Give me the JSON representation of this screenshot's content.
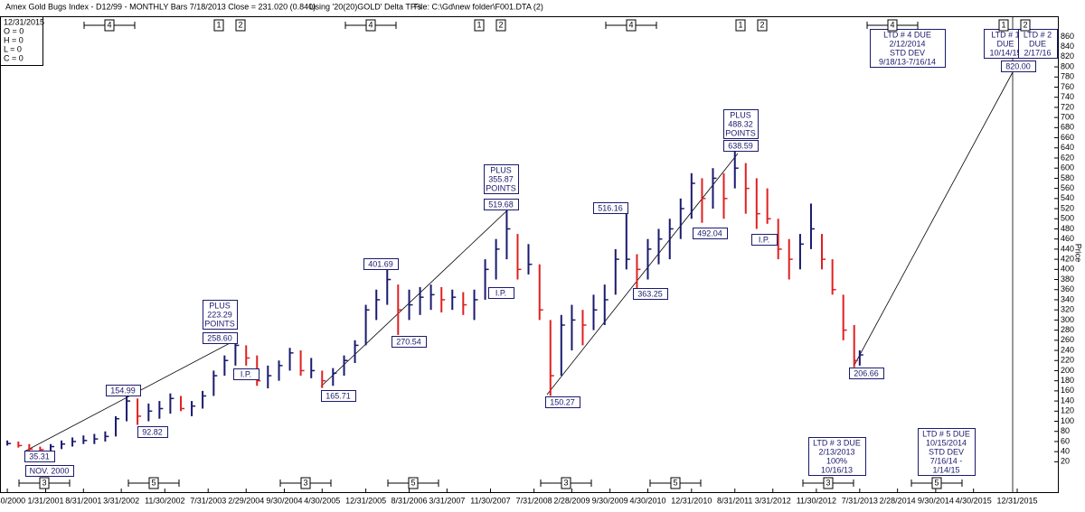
{
  "chart_data": {
    "type": "ohlc",
    "title": "Amex Gold Bugs Index - D12/99 - MONTHLY Bars 7/18/2013 Close = 231.020 (0.840)",
    "subtitle": "Using '20(20)GOLD' Delta TP's",
    "file_label": "File: C:\\Gd\\new folder\\F001.DTA (2)",
    "info_box": [
      "12/31/2015",
      "O = 0",
      "H = 0",
      "L = 0",
      "C = 0"
    ],
    "y_label": "Price",
    "up_color": "#1a1a6e",
    "down_color": "#e02020",
    "xlim": [
      "5/20/2000",
      "8/15/2016"
    ],
    "xticks": [
      "6/30/2000",
      "1/31/2001",
      "8/31/2001",
      "3/31/2002",
      "11/30/2002",
      "7/31/2003",
      "2/29/2004",
      "9/30/2004",
      "4/30/2005",
      "12/31/2005",
      "8/31/2006",
      "3/31/2007",
      "11/30/2007",
      "7/31/2008",
      "2/28/2009",
      "9/30/2009",
      "4/30/2010",
      "12/31/2010",
      "8/31/2011",
      "3/31/2012",
      "11/30/2012",
      "7/31/2013",
      "2/28/2014",
      "9/30/2014",
      "4/30/2015",
      "12/31/2015"
    ],
    "ylim": [
      -40,
      900
    ],
    "yticks": [
      20,
      40,
      60,
      80,
      100,
      120,
      140,
      160,
      180,
      200,
      220,
      240,
      260,
      280,
      300,
      320,
      340,
      360,
      380,
      400,
      420,
      440,
      460,
      480,
      500,
      520,
      540,
      560,
      580,
      600,
      620,
      640,
      660,
      680,
      700,
      720,
      740,
      760,
      780,
      800,
      820,
      840,
      860
    ],
    "x": [
      "6/30/2000",
      "8/31/2000",
      "10/31/2000",
      "12/31/2000",
      "2/28/2001",
      "4/30/2001",
      "6/30/2001",
      "8/31/2001",
      "10/31/2001",
      "12/31/2001",
      "2/28/2002",
      "4/30/2002",
      "6/30/2002",
      "8/31/2002",
      "10/31/2002",
      "12/31/2002",
      "2/28/2003",
      "4/30/2003",
      "6/30/2003",
      "8/31/2003",
      "10/31/2003",
      "12/31/2003",
      "2/29/2004",
      "4/30/2004",
      "6/30/2004",
      "8/31/2004",
      "10/31/2004",
      "12/31/2004",
      "2/28/2005",
      "4/30/2005",
      "6/30/2005",
      "8/31/2005",
      "10/31/2005",
      "12/31/2005",
      "2/28/2006",
      "4/30/2006",
      "6/30/2006",
      "8/31/2006",
      "10/31/2006",
      "12/31/2006",
      "2/28/2007",
      "4/30/2007",
      "6/30/2007",
      "8/31/2007",
      "10/31/2007",
      "12/31/2007",
      "2/29/2008",
      "4/30/2008",
      "6/30/2008",
      "8/31/2008",
      "10/31/2008",
      "12/31/2008",
      "2/28/2009",
      "4/30/2009",
      "6/30/2009",
      "8/31/2009",
      "10/31/2009",
      "12/31/2009",
      "2/28/2010",
      "4/30/2010",
      "6/30/2010",
      "8/31/2010",
      "10/31/2010",
      "12/31/2010",
      "2/28/2011",
      "4/30/2011",
      "6/30/2011",
      "8/31/2011",
      "10/31/2011",
      "12/31/2011",
      "2/29/2012",
      "4/30/2012",
      "6/30/2012",
      "8/31/2012",
      "10/31/2012",
      "12/31/2012",
      "2/28/2013",
      "4/30/2013",
      "6/30/2013",
      "7/31/2013"
    ],
    "low": [
      52,
      48,
      40,
      35.31,
      40,
      45,
      50,
      55,
      55,
      60,
      70,
      100,
      92.82,
      100,
      105,
      115,
      120,
      110,
      125,
      150,
      190,
      210,
      210,
      170,
      165,
      180,
      200,
      190,
      185,
      165.71,
      170,
      190,
      215,
      250,
      300,
      330,
      270.54,
      300,
      310,
      320,
      315,
      320,
      310,
      300,
      340,
      380,
      420,
      380,
      390,
      300,
      150.27,
      190,
      240,
      250,
      280,
      290,
      350,
      400,
      363.25,
      380,
      410,
      420,
      460,
      500,
      492.04,
      520,
      500,
      560,
      510,
      480,
      490,
      420,
      380,
      400,
      440,
      400,
      350,
      260,
      206.66,
      210
    ],
    "high": [
      62,
      60,
      55,
      50,
      55,
      62,
      68,
      72,
      75,
      80,
      110,
      154.99,
      145,
      135,
      140,
      155,
      150,
      140,
      160,
      200,
      230,
      258.6,
      250,
      230,
      210,
      220,
      245,
      240,
      225,
      200,
      205,
      230,
      260,
      330,
      360,
      401.69,
      370,
      360,
      365,
      370,
      365,
      360,
      355,
      360,
      420,
      460,
      519.68,
      470,
      450,
      410,
      300,
      310,
      330,
      320,
      350,
      370,
      440,
      516.16,
      430,
      460,
      480,
      500,
      540,
      590,
      580,
      600,
      590,
      638.59,
      610,
      580,
      560,
      500,
      460,
      470,
      530,
      470,
      420,
      350,
      290,
      240
    ],
    "close": [
      56,
      52,
      45,
      44,
      50,
      55,
      60,
      62,
      65,
      70,
      105,
      140,
      110,
      120,
      125,
      145,
      125,
      130,
      150,
      190,
      220,
      250,
      225,
      180,
      190,
      210,
      235,
      200,
      200,
      180,
      195,
      220,
      250,
      320,
      340,
      380,
      320,
      330,
      345,
      350,
      340,
      345,
      330,
      340,
      400,
      440,
      480,
      400,
      410,
      320,
      190,
      290,
      300,
      290,
      320,
      340,
      420,
      420,
      400,
      440,
      460,
      480,
      520,
      570,
      540,
      580,
      540,
      600,
      560,
      510,
      500,
      440,
      420,
      450,
      480,
      420,
      360,
      280,
      220,
      231.02
    ],
    "annotations": [
      [
        "35.31"
      ],
      [
        "NOV. 2000"
      ],
      [
        "154.99"
      ],
      [
        "92.82"
      ],
      [
        "PLUS",
        "223.29",
        "POINTS"
      ],
      [
        "258.60"
      ],
      [
        "I.P."
      ],
      [
        "165.71"
      ],
      [
        "401.69"
      ],
      [
        "270.54"
      ],
      [
        "PLUS",
        "355.87",
        "POINTS"
      ],
      [
        "519.68"
      ],
      [
        "I.P."
      ],
      [
        "150.27"
      ],
      [
        "516.16"
      ],
      [
        "363.25"
      ],
      [
        "492.04"
      ],
      [
        "PLUS",
        "488.32",
        "POINTS"
      ],
      [
        "638.59"
      ],
      [
        "I.P."
      ],
      [
        "206.66"
      ],
      [
        "LTD # 4 DUE",
        "2/12/2014",
        "STD DEV",
        "9/18/13-7/16/14"
      ],
      [
        "LTD # 1",
        "DUE",
        "10/14/15"
      ],
      [
        "820.00"
      ],
      [
        "LTD # 2",
        "DUE",
        "2/17/16"
      ],
      [
        "LTD # 3 DUE",
        "2/13/2013",
        "100%",
        "10/16/13"
      ],
      [
        "LTD # 5 DUE",
        "10/15/2014",
        "STD DEV",
        "7/16/14 -",
        "1/14/15"
      ]
    ],
    "top_markers": [
      "4",
      "1",
      "2",
      "4",
      "1",
      "2",
      "4",
      "1",
      "2",
      "4",
      "1",
      "2"
    ],
    "bottom_markers": [
      "3",
      "5",
      "3",
      "5",
      "3",
      "5",
      "3",
      "5"
    ]
  }
}
